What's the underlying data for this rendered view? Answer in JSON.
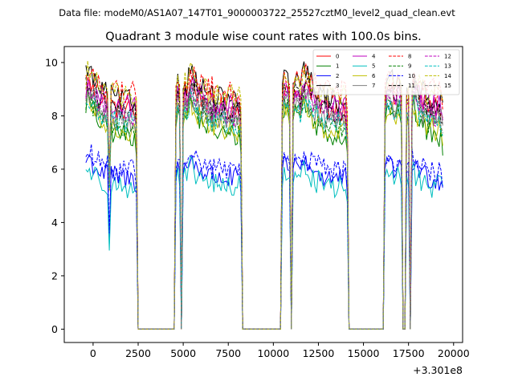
{
  "suptitle": "Data file: modeM0/AS1A07_147T01_9000003722_25527cztM0_level2_quad_clean.evt",
  "chart_data": {
    "type": "line",
    "title": "Quadrant 3 module wise count rates with 100.0s bins.",
    "xlabel": "",
    "ylabel": "",
    "x_offset_label": "+3.301e8",
    "xlim": [
      -1600,
      20500
    ],
    "ylim": [
      -0.5,
      10.6
    ],
    "xticks": [
      0,
      2500,
      5000,
      7500,
      10000,
      12500,
      15000,
      17500,
      20000
    ],
    "xtick_labels": [
      "0",
      "2500",
      "5000",
      "7500",
      "10000",
      "12500",
      "15000",
      "17500",
      "20000"
    ],
    "yticks": [
      0,
      2,
      4,
      6,
      8,
      10
    ],
    "ytick_labels": [
      "0",
      "2",
      "4",
      "6",
      "8",
      "10"
    ],
    "legend_position": "top-right",
    "legend_columns": 4,
    "segments": [
      [
        -400,
        2450
      ],
      [
        4550,
        4850
      ],
      [
        5000,
        5200
      ],
      [
        5250,
        8250
      ],
      [
        10450,
        10950
      ],
      [
        11100,
        11550
      ],
      [
        11600,
        14100
      ],
      [
        16150,
        16700
      ],
      [
        16800,
        17150
      ],
      [
        17350,
        17550
      ],
      [
        17650,
        19400
      ]
    ],
    "gaps_at_zero": [
      [
        2450,
        4550
      ],
      [
        4850,
        5000
      ],
      [
        8250,
        10450
      ],
      [
        10950,
        11100
      ],
      [
        14100,
        16150
      ],
      [
        17150,
        17350
      ]
    ],
    "dip_at": 900,
    "series": [
      {
        "name": "0",
        "color": "#ff0000",
        "dash": "solid",
        "base": 8.2,
        "peak": 9.5,
        "dip": 5.4
      },
      {
        "name": "1",
        "color": "#008000",
        "dash": "solid",
        "base": 7.2,
        "peak": 8.9,
        "dip": 5.2
      },
      {
        "name": "2",
        "color": "#0000ff",
        "dash": "solid",
        "base": 5.6,
        "peak": 6.6,
        "dip": 3.2
      },
      {
        "name": "3",
        "color": "#000000",
        "dash": "solid",
        "base": 8.5,
        "peak": 10.1,
        "dip": 5.6
      },
      {
        "name": "4",
        "color": "#bf00bf",
        "dash": "solid",
        "base": 8.3,
        "peak": 9.4,
        "dip": 5.6
      },
      {
        "name": "5",
        "color": "#00bfbf",
        "dash": "solid",
        "base": 5.3,
        "peak": 6.2,
        "dip": 2.95
      },
      {
        "name": "6",
        "color": "#bfbf00",
        "dash": "solid",
        "base": 7.4,
        "peak": 8.8,
        "dip": 5.2
      },
      {
        "name": "7",
        "color": "#808080",
        "dash": "solid",
        "base": 7.8,
        "peak": 9.0,
        "dip": 5.4
      },
      {
        "name": "8",
        "color": "#ff0000",
        "dash": "dashed",
        "base": 8.9,
        "peak": 9.8,
        "dip": 5.8
      },
      {
        "name": "9",
        "color": "#008000",
        "dash": "dashed",
        "base": 7.6,
        "peak": 9.0,
        "dip": 5.3
      },
      {
        "name": "10",
        "color": "#0000ff",
        "dash": "dashed",
        "base": 5.9,
        "peak": 6.8,
        "dip": 3.6
      },
      {
        "name": "11",
        "color": "#000000",
        "dash": "dashed",
        "base": 8.1,
        "peak": 9.6,
        "dip": 5.5
      },
      {
        "name": "12",
        "color": "#bf00bf",
        "dash": "dashed",
        "base": 8.0,
        "peak": 9.3,
        "dip": 5.5
      },
      {
        "name": "13",
        "color": "#00bfbf",
        "dash": "dashed",
        "base": 7.7,
        "peak": 8.8,
        "dip": 5.3
      },
      {
        "name": "14",
        "color": "#bfbf00",
        "dash": "dashed",
        "base": 8.7,
        "peak": 9.9,
        "dip": 5.7
      },
      {
        "name": "15",
        "color": "#808080",
        "dash": "dashed",
        "base": 7.9,
        "peak": 9.1,
        "dip": 5.4
      }
    ]
  }
}
